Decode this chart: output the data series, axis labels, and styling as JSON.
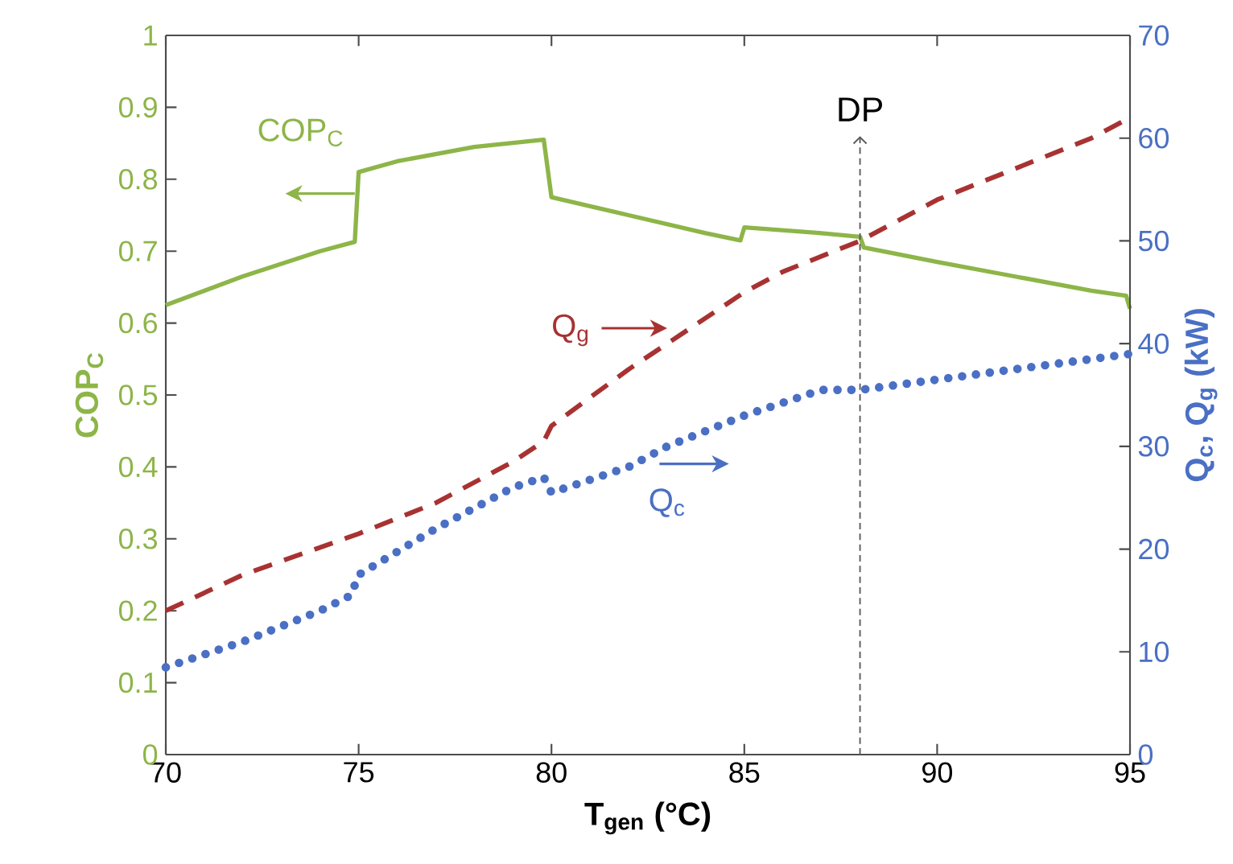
{
  "chart_data": {
    "type": "line",
    "xlabel": "T$_{gen}$ (°C)",
    "ylabel": "COP$_{C}$",
    "y2label": "Q$_{c}$, Q$_{g}$ (kW)",
    "xlim": [
      70,
      95
    ],
    "xticks": [
      70,
      75,
      80,
      85,
      90,
      95
    ],
    "ylim": [
      0,
      1
    ],
    "yticks": [
      0,
      0.1,
      0.2,
      0.3,
      0.4,
      0.5,
      0.6,
      0.7,
      0.8,
      0.9,
      1
    ],
    "y2lim": [
      0,
      70
    ],
    "y2ticks": [
      0,
      10,
      20,
      30,
      40,
      50,
      60,
      70
    ],
    "marker": "none",
    "ref_lines": [
      {
        "axis": "x",
        "value": 88,
        "label": "DP",
        "color": "#595959",
        "line_style": "dashed"
      }
    ],
    "series": [
      {
        "name": "COP$_{C}$",
        "color": "#8db548",
        "line_style": "solid",
        "x": [
          70,
          72,
          74,
          74.9,
          75,
          76,
          78,
          79.8,
          80,
          82,
          84,
          84.9,
          85,
          87,
          88,
          88.1,
          90,
          92,
          94,
          94.9,
          95
        ],
        "values": [
          0.625,
          0.665,
          0.7,
          0.713,
          0.81,
          0.825,
          0.845,
          0.855,
          0.775,
          0.75,
          0.725,
          0.715,
          0.733,
          0.725,
          0.72,
          0.705,
          0.685,
          0.665,
          0.645,
          0.638,
          0.62
        ]
      },
      {
        "name": "Q$_{g}$",
        "color": "#a83232",
        "line_style": "dashed",
        "axis": "y2",
        "x": [
          70,
          72,
          75,
          77,
          79,
          79.8,
          80,
          82,
          83,
          85,
          86,
          88,
          90,
          92,
          94,
          95
        ],
        "values": [
          14,
          17.5,
          21.5,
          24.5,
          28.5,
          30.5,
          32,
          37.5,
          40,
          45,
          47,
          50,
          54,
          57,
          60,
          62
        ]
      },
      {
        "name": "Q$_{c}$",
        "color": "#4a6fc4",
        "line_style": "dotted",
        "axis": "y2",
        "x": [
          70,
          72,
          74,
          74.8,
          75,
          77,
          79,
          79.8,
          80,
          82,
          83,
          85,
          87,
          88,
          90,
          92,
          95
        ],
        "values": [
          8.5,
          11,
          14,
          15.5,
          17.5,
          22,
          26,
          27,
          25.5,
          28,
          30,
          33,
          35.5,
          35.5,
          36.5,
          37.5,
          39
        ]
      }
    ]
  }
}
